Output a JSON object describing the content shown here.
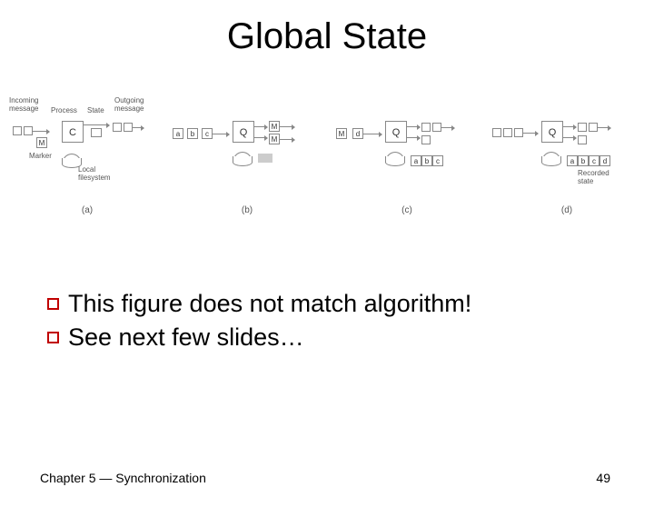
{
  "title": "Global State",
  "diagrams": {
    "a": {
      "label": "(a)",
      "annotations": {
        "incoming": "Incoming\nmessage",
        "process": "Process",
        "state": "State",
        "outgoing": "Outgoing\nmessage",
        "marker": "Marker",
        "local_fs": "Local\nfilesystem"
      },
      "boxes": {
        "marker": "M",
        "process": "C"
      }
    },
    "b": {
      "label": "(b)",
      "msg_queue": [
        "a",
        "b",
        "c"
      ],
      "process": "Q",
      "out_markers": [
        "M",
        "M"
      ]
    },
    "c": {
      "label": "(c)",
      "in_items": [
        "M",
        "d"
      ],
      "process": "Q",
      "recorded": [
        "a",
        "b",
        "c"
      ]
    },
    "d": {
      "label": "(d)",
      "process": "Q",
      "recorded": [
        "a",
        "b",
        "c",
        "d"
      ],
      "recorded_label": "Recorded\nstate"
    }
  },
  "bullets": [
    "This figure does not match algorithm!",
    "See next few slides…"
  ],
  "footer": {
    "left": "Chapter 5 — Synchronization",
    "page": "49"
  },
  "colors": {
    "bullet_border": "#c00000",
    "text": "#000000",
    "diagram_stroke": "#888888",
    "background": "#ffffff"
  },
  "fonts": {
    "title_family": "Comic Sans MS",
    "title_size_pt": 30,
    "body_family": "Comic Sans MS",
    "body_size_pt": 20,
    "footer_size_pt": 11,
    "diagram_label_size_pt": 8
  }
}
